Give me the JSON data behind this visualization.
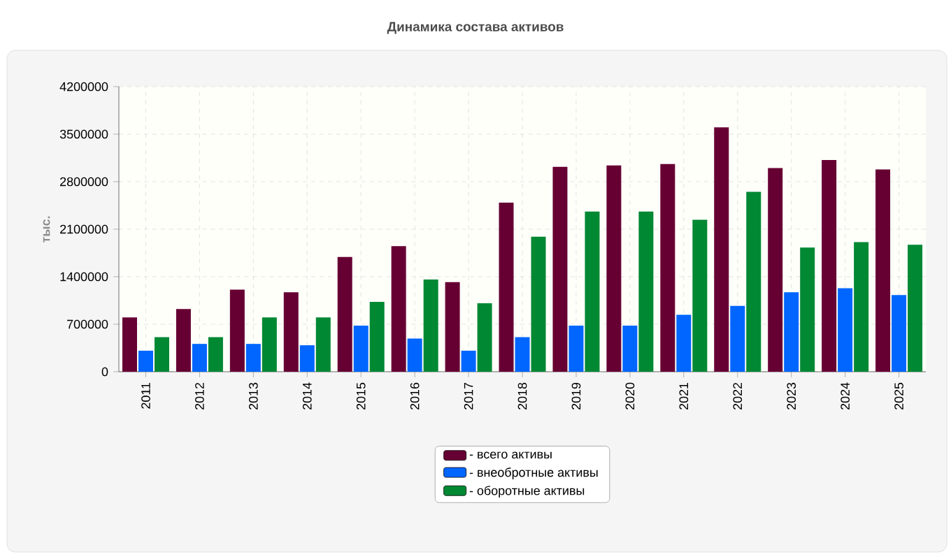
{
  "chart_data": {
    "type": "bar",
    "title": "Динамика состава активов",
    "ylabel": "тыс.",
    "categories": [
      "2011",
      "2012",
      "2013",
      "2014",
      "2015",
      "2016",
      "2017",
      "2018",
      "2019",
      "2020",
      "2021",
      "2022",
      "2023",
      "2024",
      "2025"
    ],
    "series": [
      {
        "name": "- всего активы",
        "color": "#660033",
        "values": [
          800000,
          925000,
          1210000,
          1170000,
          1690000,
          1850000,
          1320000,
          2490000,
          3020000,
          3040000,
          3060000,
          3600000,
          3000000,
          3120000,
          2980000
        ]
      },
      {
        "name": "- внеобротные активы",
        "color": "#0066ff",
        "values": [
          310000,
          410000,
          410000,
          390000,
          680000,
          490000,
          310000,
          510000,
          680000,
          680000,
          840000,
          970000,
          1170000,
          1230000,
          1130000
        ]
      },
      {
        "name": "- оборотные активы",
        "color": "#008833",
        "values": [
          510000,
          510000,
          800000,
          800000,
          1030000,
          1360000,
          1010000,
          1990000,
          2360000,
          2360000,
          2240000,
          2650000,
          1830000,
          1910000,
          1870000
        ]
      }
    ],
    "ylim": [
      0,
      4200000
    ],
    "yticks": [
      0,
      700000,
      1400000,
      2100000,
      2800000,
      3500000,
      4200000
    ],
    "grid": true,
    "legend": "bottom"
  }
}
